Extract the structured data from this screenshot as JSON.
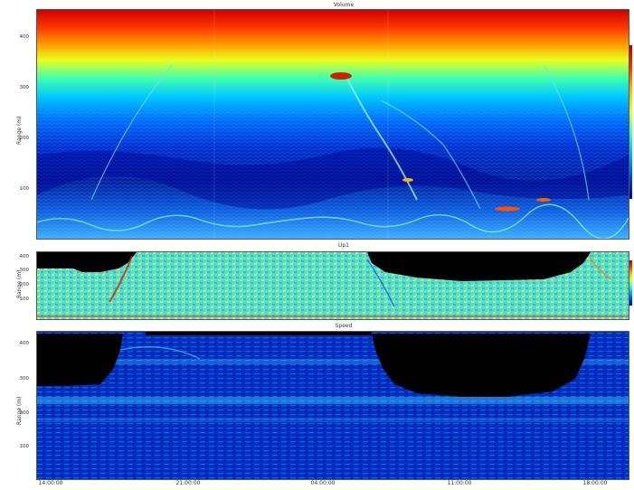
{
  "chart_data": [
    {
      "type": "heatmap",
      "title": "Volume",
      "ylabel": "Range (m)",
      "yticks": [
        "100",
        "200",
        "300",
        "400"
      ],
      "ylim": [
        0,
        470
      ],
      "colormap": "jet",
      "colors": {
        "high": "#d00000",
        "mid": "#40ffb0",
        "low": "#000090",
        "nodata": "#000000"
      }
    },
    {
      "type": "heatmap",
      "title": "Up1",
      "ylabel": "Range (m)",
      "yticks": [
        "100",
        "200",
        "300",
        "400"
      ],
      "ylim": [
        0,
        420
      ],
      "colormap": "jet",
      "colors": {
        "high": "#d00000",
        "mid": "#e0ff30",
        "low": "#0000a0",
        "nodata": "#000000"
      }
    },
    {
      "type": "heatmap",
      "title": "Speed",
      "ylabel": "Range (m)",
      "yticks": [
        "100",
        "200",
        "300",
        "400"
      ],
      "ylim": [
        0,
        440
      ],
      "colormap": "jet",
      "colors": {
        "high": "#30e0ff",
        "mid": "#0060ff",
        "low": "#000080",
        "nodata": "#000000"
      }
    }
  ],
  "xaxis": {
    "ticks": [
      "14:00:00",
      "21:00:00",
      "04:00:00",
      "11:00:00",
      "18:00:00"
    ]
  }
}
